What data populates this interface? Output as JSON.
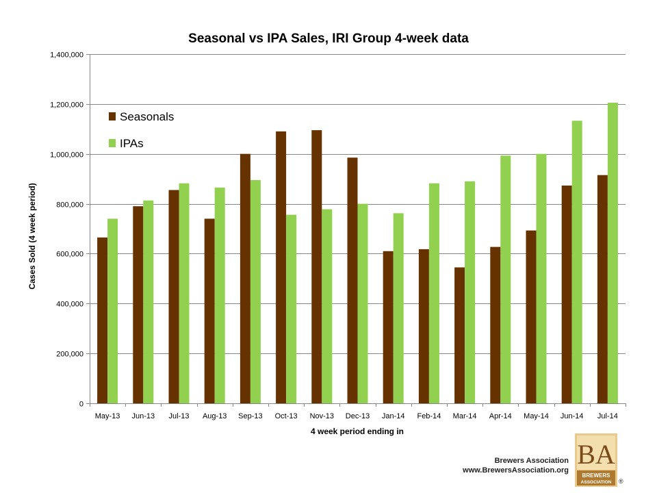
{
  "chart_data": {
    "type": "bar",
    "title": "Seasonal vs IPA Sales, IRI Group 4-week data",
    "xlabel": "4 week period ending in",
    "ylabel": "Cases Sold (4 week period)",
    "ylim": [
      0,
      1400000
    ],
    "yticks": [
      0,
      200000,
      400000,
      600000,
      800000,
      1000000,
      1200000,
      1400000
    ],
    "ytick_labels": [
      "0",
      "200,000",
      "400,000",
      "600,000",
      "800,000",
      "1,000,000",
      "1,200,000",
      "1,400,000"
    ],
    "grid": true,
    "legend_position": "top-left",
    "categories": [
      "May-13",
      "Jun-13",
      "Jul-13",
      "Aug-13",
      "Sep-13",
      "Oct-13",
      "Nov-13",
      "Dec-13",
      "Jan-14",
      "Feb-14",
      "Mar-14",
      "Apr-14",
      "May-14",
      "Jun-14",
      "Jul-14"
    ],
    "series": [
      {
        "name": "Seasonals",
        "color": "#663300",
        "values": [
          665000,
          790000,
          855000,
          740000,
          1000000,
          1090000,
          1095000,
          985000,
          610000,
          618000,
          545000,
          627000,
          693000,
          873000,
          915000
        ]
      },
      {
        "name": "IPAs",
        "color": "#92D050",
        "values": [
          740000,
          813000,
          882000,
          865000,
          895000,
          756000,
          778000,
          800000,
          762000,
          882000,
          890000,
          993000,
          1000000,
          1133000,
          1205000
        ]
      }
    ]
  },
  "footer": {
    "org_name": "Brewers Association",
    "org_url": "www.BrewersAssociation.org"
  },
  "logo": {
    "monogram": "BA",
    "line1": "BREWERS",
    "line2": "ASSOCIATION",
    "registered": "®"
  }
}
